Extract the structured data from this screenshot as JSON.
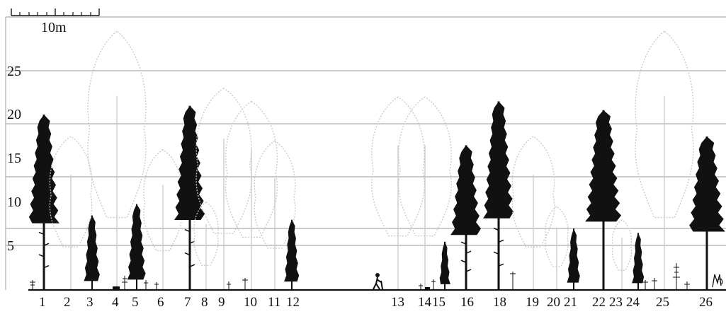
{
  "scale_bar": {
    "label": "10m"
  },
  "y_axis": {
    "labels": [
      "25",
      "20",
      "15",
      "10",
      "5"
    ]
  },
  "colors": {
    "ink": "#111111",
    "grid": "#9a9a9a",
    "ghost": "#c8c8c8"
  },
  "trees": [
    {
      "num": "1",
      "height": 20.0,
      "style": "conifer"
    },
    {
      "num": "2",
      "height": 17.5,
      "style": "ghost"
    },
    {
      "num": "3",
      "height": 8.5,
      "style": "conifer"
    },
    {
      "num": "4",
      "height": 29.5,
      "style": "ghost"
    },
    {
      "num": "5",
      "height": 9.8,
      "style": "conifer"
    },
    {
      "num": "6",
      "height": 16.0,
      "style": "ghost"
    },
    {
      "num": "7",
      "height": 21.0,
      "style": "conifer"
    },
    {
      "num": "8",
      "height": 10.0,
      "style": "ghost"
    },
    {
      "num": "9",
      "height": 23.0,
      "style": "ghost"
    },
    {
      "num": "10",
      "height": 21.5,
      "style": "ghost"
    },
    {
      "num": "11",
      "height": 17.0,
      "style": "ghost"
    },
    {
      "num": "12",
      "height": 8.0,
      "style": "conifer"
    },
    {
      "num": "13",
      "height": 22.0,
      "style": "ghost"
    },
    {
      "num": "14",
      "height": 22.0,
      "style": "ghost"
    },
    {
      "num": "15",
      "height": 5.5,
      "style": "conifer"
    },
    {
      "num": "16",
      "height": 16.5,
      "style": "conifer"
    },
    {
      "num": "18",
      "height": 21.5,
      "style": "conifer"
    },
    {
      "num": "19",
      "height": 17.5,
      "style": "ghost"
    },
    {
      "num": "20",
      "height": 9.5,
      "style": "ghost"
    },
    {
      "num": "21",
      "height": 7.0,
      "style": "conifer"
    },
    {
      "num": "22",
      "height": 20.5,
      "style": "dense"
    },
    {
      "num": "23",
      "height": 8.0,
      "style": "ghost"
    },
    {
      "num": "24",
      "height": 6.5,
      "style": "conifer"
    },
    {
      "num": "25",
      "height": 29.5,
      "style": "ghost"
    },
    {
      "num": "26",
      "height": 17.5,
      "style": "dense"
    }
  ],
  "signature": "M'01"
}
